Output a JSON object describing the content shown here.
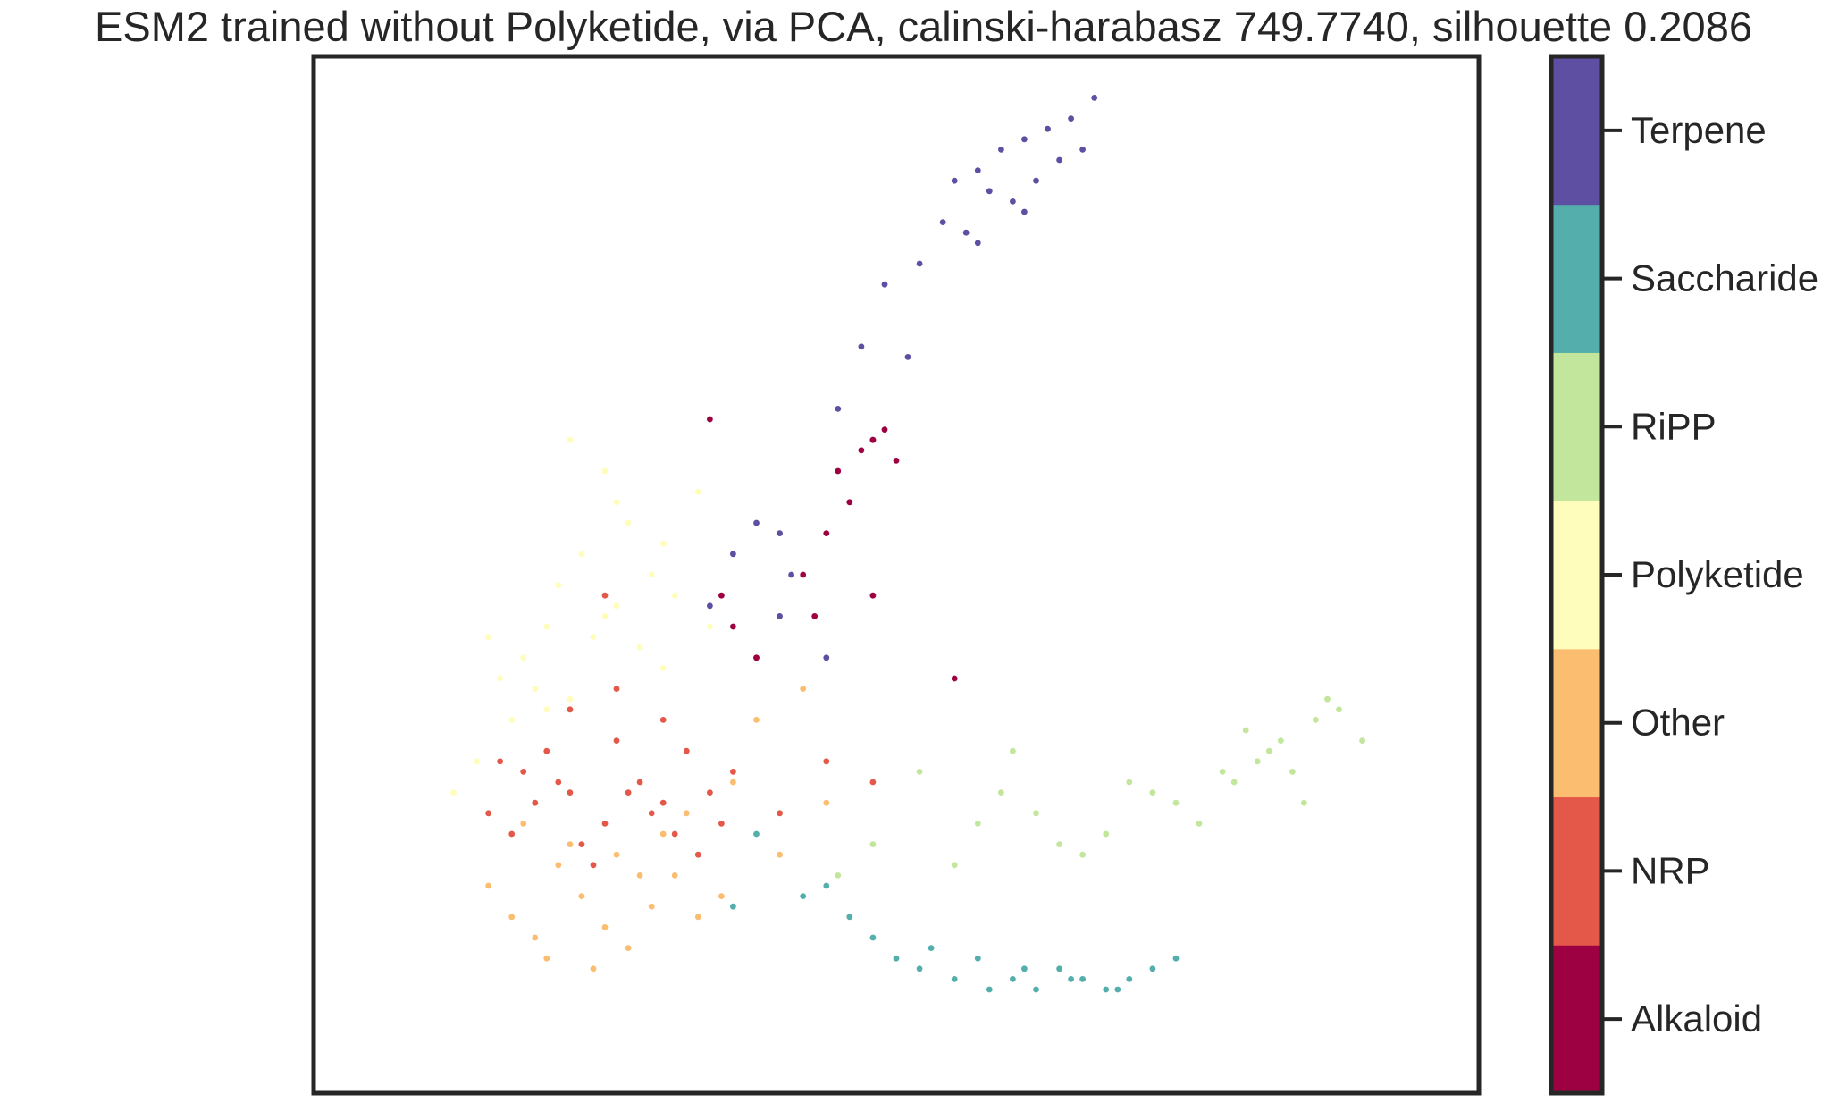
{
  "chart_data": {
    "type": "scatter",
    "title": "ESM2 trained without Polyketide, via PCA, calinski-harabasz 749.7740, silhouette 0.2086",
    "xlabel": "",
    "ylabel": "",
    "axes_ticks_visible": false,
    "grid": false,
    "colorbar": {
      "position": "right",
      "categories": [
        "Alkaloid",
        "NRP",
        "Other",
        "Polyketide",
        "RiPP",
        "Saccharide",
        "Terpene"
      ],
      "colors": [
        "#9e0142",
        "#e4584a",
        "#fbbd6f",
        "#fffdbb",
        "#c2e69c",
        "#54aeac",
        "#5e4fa2"
      ]
    },
    "xlim": [
      0,
      100
    ],
    "ylim": [
      0,
      100
    ],
    "series": [
      {
        "name": "Terpene",
        "color": "#5e4fa2",
        "x": [
          55,
          57,
          59,
          61,
          63,
          65,
          67,
          58,
          60,
          62,
          64,
          66,
          54,
          57,
          52,
          49,
          56,
          61,
          47,
          51,
          45,
          48,
          38,
          40,
          36,
          41,
          34,
          40,
          44
        ],
        "y": [
          88,
          89,
          91,
          92,
          93,
          94,
          96,
          87,
          86,
          88,
          90,
          91,
          84,
          82,
          80,
          78,
          83,
          85,
          72,
          71,
          66,
          63,
          55,
          54,
          52,
          50,
          47,
          46,
          42
        ]
      },
      {
        "name": "Saccharide",
        "color": "#54aeac",
        "x": [
          50,
          52,
          55,
          58,
          60,
          62,
          64,
          66,
          68,
          70,
          72,
          74,
          48,
          46,
          44,
          42,
          53,
          57,
          61,
          65,
          69,
          38,
          36
        ],
        "y": [
          13,
          12,
          11,
          10,
          11,
          10,
          12,
          11,
          10,
          11,
          12,
          13,
          15,
          17,
          20,
          19,
          14,
          13,
          12,
          11,
          10,
          25,
          18
        ]
      },
      {
        "name": "RiPP",
        "color": "#c2e69c",
        "x": [
          80,
          82,
          84,
          86,
          88,
          90,
          79,
          81,
          83,
          85,
          87,
          70,
          72,
          74,
          76,
          78,
          62,
          64,
          66,
          68,
          55,
          57,
          59,
          60,
          52,
          48,
          45
        ],
        "y": [
          35,
          33,
          31,
          36,
          37,
          34,
          30,
          32,
          34,
          28,
          38,
          30,
          29,
          28,
          26,
          31,
          27,
          24,
          23,
          25,
          22,
          26,
          29,
          33,
          31,
          24,
          21
        ]
      },
      {
        "name": "Polyketide",
        "color": "#fffdbb",
        "x": [
          16,
          18,
          20,
          22,
          24,
          26,
          28,
          30,
          17,
          19,
          21,
          23,
          25,
          27,
          29,
          31,
          33,
          14,
          15,
          20,
          25,
          30,
          34,
          12,
          22,
          26
        ],
        "y": [
          40,
          42,
          45,
          38,
          44,
          47,
          43,
          41,
          36,
          39,
          49,
          52,
          46,
          55,
          50,
          48,
          58,
          32,
          44,
          37,
          60,
          53,
          45,
          29,
          63,
          57
        ]
      },
      {
        "name": "Other",
        "color": "#fbbd6f",
        "x": [
          15,
          17,
          19,
          21,
          23,
          25,
          27,
          29,
          31,
          33,
          18,
          22,
          26,
          30,
          35,
          20,
          24,
          28,
          32,
          36,
          40,
          44,
          38,
          42
        ],
        "y": [
          20,
          17,
          15,
          22,
          19,
          16,
          14,
          18,
          21,
          17,
          26,
          24,
          23,
          25,
          19,
          13,
          12,
          21,
          27,
          30,
          23,
          28,
          36,
          39
        ]
      },
      {
        "name": "NRP",
        "color": "#e4584a",
        "x": [
          15,
          17,
          19,
          21,
          23,
          25,
          27,
          29,
          31,
          33,
          35,
          16,
          18,
          20,
          22,
          24,
          26,
          28,
          30,
          32,
          34,
          22,
          26,
          30,
          36,
          40,
          44,
          48,
          38,
          25
        ],
        "y": [
          27,
          25,
          28,
          30,
          24,
          26,
          29,
          27,
          25,
          23,
          26,
          32,
          31,
          33,
          29,
          22,
          34,
          30,
          28,
          33,
          29,
          37,
          39,
          36,
          31,
          27,
          32,
          30,
          42,
          48
        ]
      },
      {
        "name": "Alkaloid",
        "color": "#9e0142",
        "x": [
          34,
          35,
          45,
          47,
          48,
          49,
          50,
          46,
          44,
          42,
          43,
          48,
          55,
          38,
          36
        ],
        "y": [
          65,
          48,
          60,
          62,
          63,
          64,
          61,
          57,
          54,
          50,
          46,
          48,
          40,
          42,
          45
        ]
      }
    ]
  }
}
